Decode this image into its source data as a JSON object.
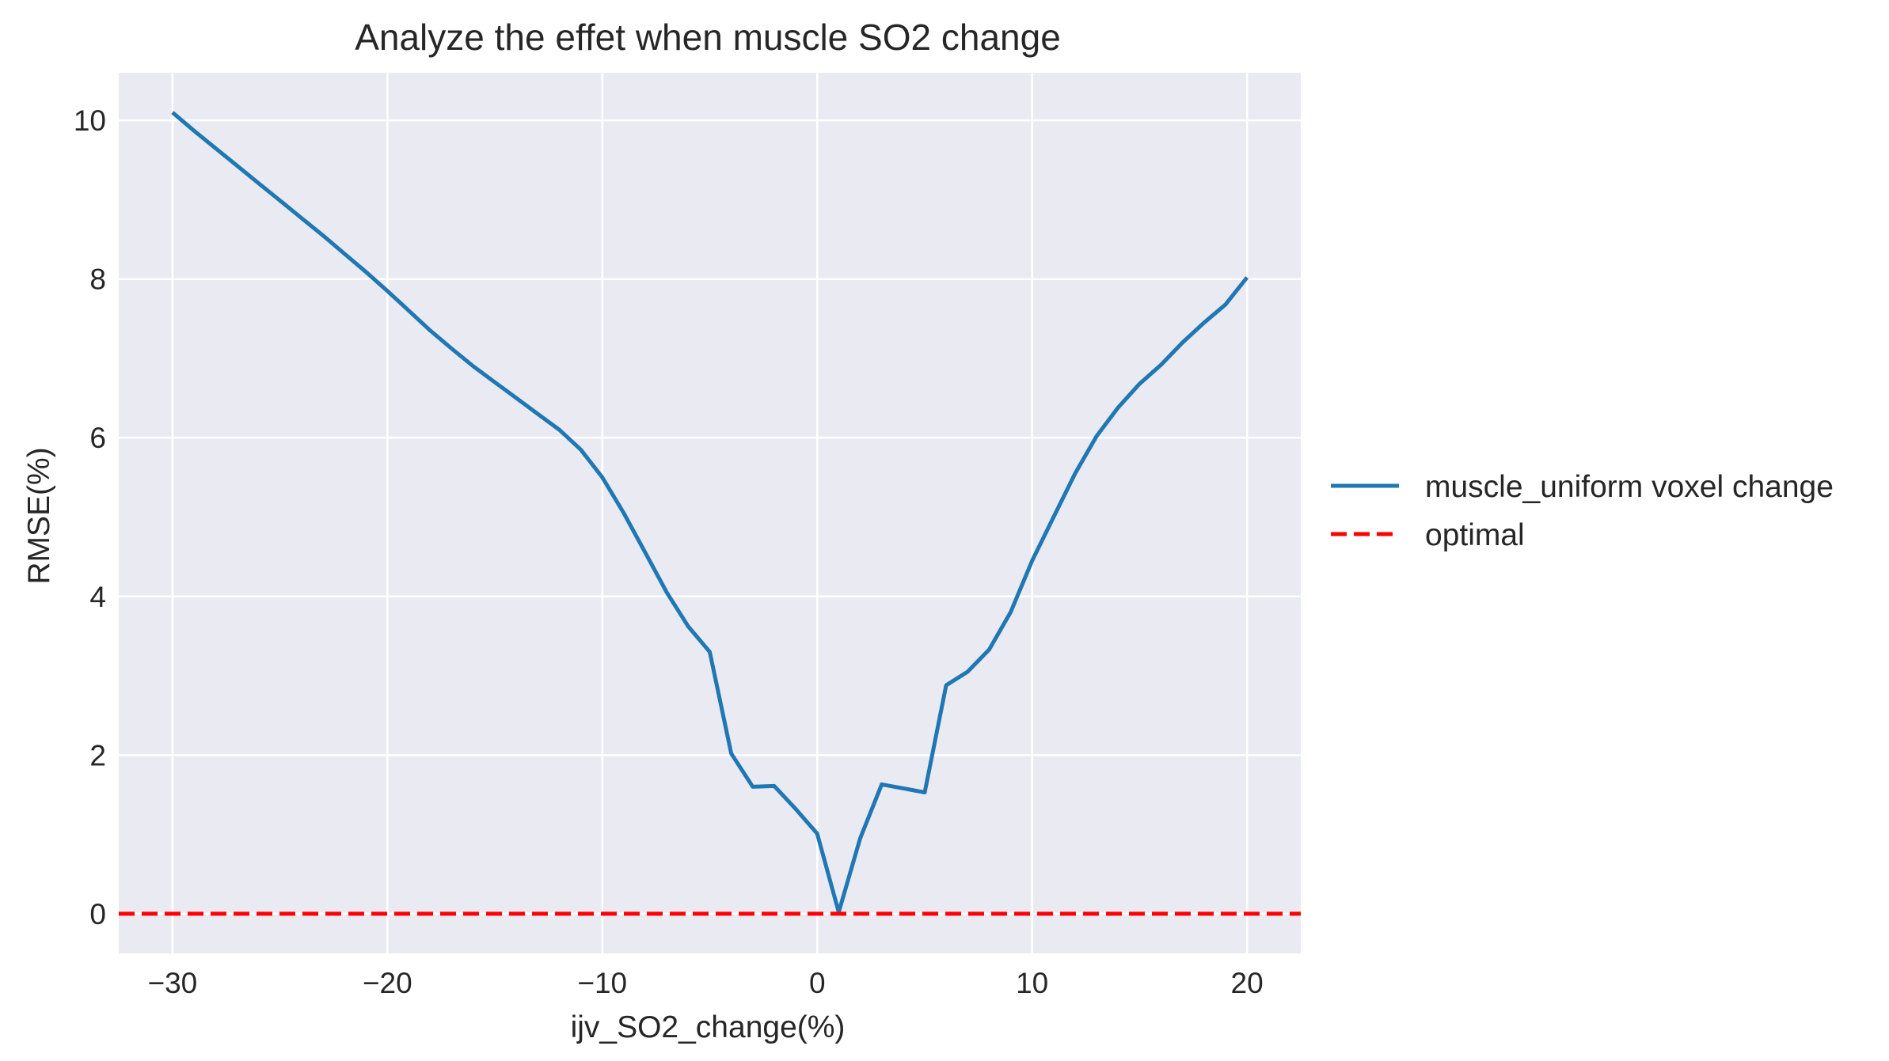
{
  "chart_data": {
    "type": "line",
    "title": "Analyze the effet when muscle SO2 change",
    "xlabel": "ijv_SO2_change(%)",
    "ylabel": "RMSE(%)",
    "xlim": [
      -32.5,
      22.5
    ],
    "ylim": [
      -0.5,
      10.6
    ],
    "x_ticks": [
      -30,
      -20,
      -10,
      0,
      10,
      20
    ],
    "x_tick_labels": [
      "−30",
      "−20",
      "−10",
      "0",
      "10",
      "20"
    ],
    "y_ticks": [
      0,
      2,
      4,
      6,
      8,
      10
    ],
    "y_tick_labels": [
      "0",
      "2",
      "4",
      "6",
      "8",
      "10"
    ],
    "grid": true,
    "legend_position": "center-right, outside plot",
    "colors": {
      "background": "#eaeaf2",
      "grid": "#ffffff",
      "series": "#1f77b4",
      "optimal": "#ff0000"
    },
    "series": [
      {
        "name": "muscle_uniform voxel change",
        "style": "solid",
        "color": "#1f77b4",
        "x": [
          -30,
          -29,
          -28,
          -27,
          -26,
          -25,
          -24,
          -23,
          -22,
          -21,
          -20,
          -19,
          -18,
          -17,
          -16,
          -15,
          -14,
          -13,
          -12,
          -11,
          -10,
          -9,
          -8,
          -7,
          -6,
          -5,
          -4,
          -3,
          -2,
          -1,
          0,
          1,
          2,
          3,
          4,
          5,
          6,
          7,
          8,
          9,
          10,
          11,
          12,
          13,
          14,
          15,
          16,
          17,
          18,
          19,
          20
        ],
        "y": [
          10.1,
          9.87,
          9.65,
          9.43,
          9.21,
          8.99,
          8.77,
          8.55,
          8.32,
          8.09,
          7.85,
          7.6,
          7.35,
          7.12,
          6.9,
          6.7,
          6.5,
          6.3,
          6.1,
          5.85,
          5.5,
          5.05,
          4.55,
          4.05,
          3.62,
          3.3,
          2.02,
          1.6,
          1.61,
          1.32,
          1.01,
          0.02,
          0.95,
          1.63,
          1.58,
          1.53,
          2.88,
          3.05,
          3.33,
          3.8,
          4.45,
          5.0,
          5.55,
          6.02,
          6.38,
          6.68,
          6.92,
          7.2,
          7.45,
          7.68,
          8.02
        ]
      },
      {
        "name": "optimal",
        "style": "dashed",
        "color": "#ff0000",
        "x": [
          -32.5,
          22.5
        ],
        "y": [
          0,
          0
        ]
      }
    ]
  }
}
